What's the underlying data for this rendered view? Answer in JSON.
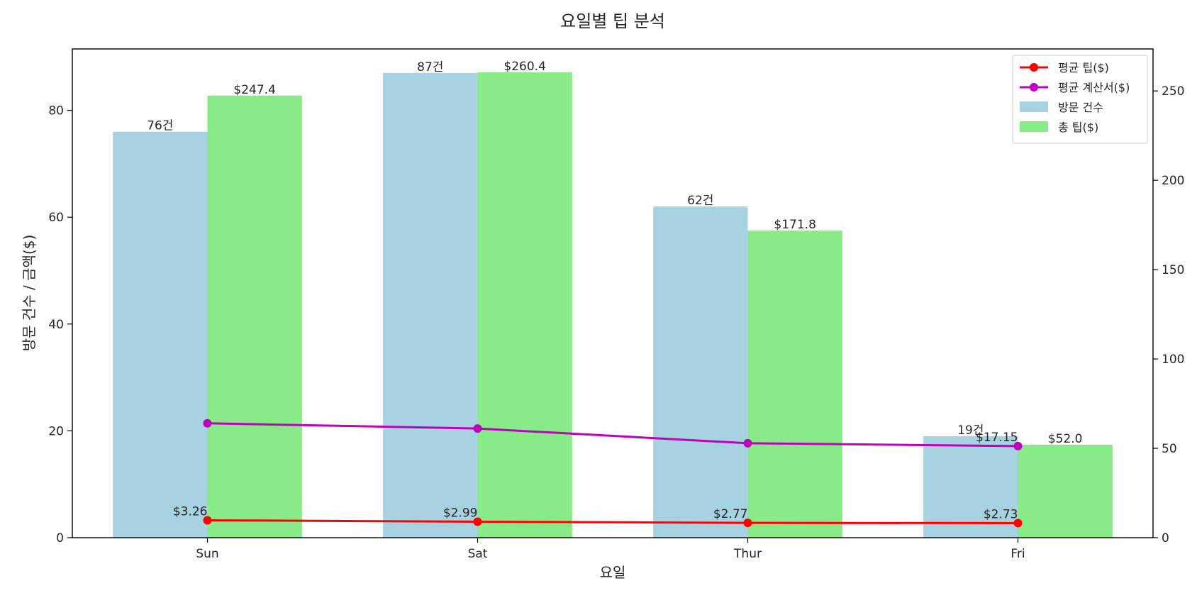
{
  "chart_data": {
    "type": "bar",
    "title": "요일별 팁 분석",
    "xlabel": "요일",
    "ylabel": "방문 건수 / 금액($)",
    "categories": [
      "Sun",
      "Sat",
      "Thur",
      "Fri"
    ],
    "ylim": [
      0,
      91.5
    ],
    "y_ticks": [
      0,
      20,
      40,
      60,
      80
    ],
    "ylim_right": [
      0,
      273.5
    ],
    "y2_ticks": [
      0,
      50,
      100,
      150,
      200,
      250
    ],
    "series": [
      {
        "name": "방문 건수",
        "kind": "bar",
        "axis": "left",
        "color": "#a6d2e2",
        "values": [
          76,
          87,
          62,
          19
        ],
        "labels": [
          "76건",
          "87건",
          "62건",
          "19건"
        ]
      },
      {
        "name": "총 팁($)",
        "kind": "bar",
        "axis": "right",
        "color": "#88eb88",
        "values": [
          247.4,
          260.4,
          171.8,
          52.0
        ],
        "labels": [
          "$247.4",
          "$260.4",
          "$171.8",
          "$52.0"
        ]
      },
      {
        "name": "평균 팁($)",
        "kind": "line",
        "axis": "left",
        "color": "#ff0000",
        "values": [
          3.26,
          2.99,
          2.77,
          2.73
        ],
        "labels": [
          "$3.26",
          "$2.99",
          "$2.77",
          "$2.73"
        ]
      },
      {
        "name": "평균 계산서($)",
        "kind": "line",
        "axis": "left",
        "color": "#bf00bf",
        "values": [
          21.41,
          20.44,
          17.68,
          17.15
        ],
        "labels": [
          "",
          "",
          "",
          "$17.15"
        ]
      }
    ],
    "legend_order": [
      2,
      3,
      0,
      1
    ],
    "legend_position": "top-right",
    "grid": false
  }
}
